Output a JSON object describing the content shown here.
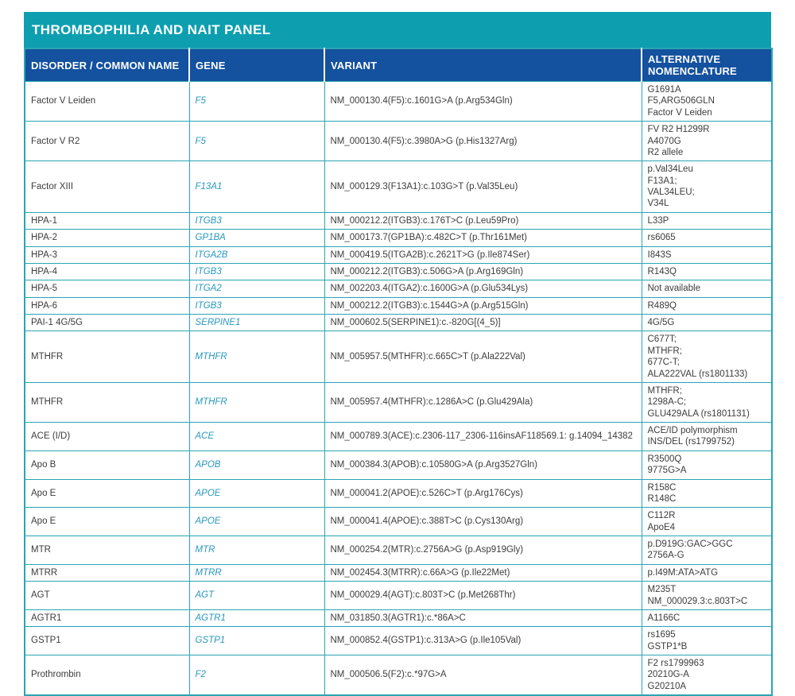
{
  "panel": {
    "title": "THROMBOPHILIA AND NAIT PANEL"
  },
  "colors": {
    "title_bar_teal": "#0d9fb0",
    "header_blue": "#14519e",
    "border_teal": "#2aa5b5",
    "gene_text_teal": "#2898bf",
    "body_text": "#3c3c3c"
  },
  "table": {
    "headers": [
      "DISORDER / COMMON NAME",
      "GENE",
      "VARIANT",
      "ALTERNATIVE NOMENCLATURE"
    ],
    "rows": [
      {
        "disorder": "Factor V Leiden",
        "gene": "F5",
        "variant": "NM_000130.4(F5):c.1601G>A (p.Arg534Gln)",
        "alt": "G1691A\nF5,ARG506GLN\nFactor V Leiden"
      },
      {
        "disorder": "Factor V R2",
        "gene": "F5",
        "variant": "NM_000130.4(F5):c.3980A>G (p.His1327Arg)",
        "alt": "FV R2 H1299R\nA4070G\nR2 allele"
      },
      {
        "disorder": "Factor XIII",
        "gene": "F13A1",
        "variant": "NM_000129.3(F13A1):c.103G>T (p.Val35Leu)",
        "alt": "p.Val34Leu\nF13A1;\nVAL34LEU;\nV34L"
      },
      {
        "disorder": "HPA-1",
        "gene": "ITGB3",
        "variant": "NM_000212.2(ITGB3):c.176T>C (p.Leu59Pro)",
        "alt": "L33P"
      },
      {
        "disorder": "HPA-2",
        "gene": "GP1BA",
        "variant": "NM_000173.7(GP1BA):c.482C>T (p.Thr161Met)",
        "alt": "rs6065"
      },
      {
        "disorder": "HPA-3",
        "gene": "ITGA2B",
        "variant": "NM_000419.5(ITGA2B):c.2621T>G (p.Ile874Ser)",
        "alt": "I843S"
      },
      {
        "disorder": "HPA-4",
        "gene": "ITGB3",
        "variant": "NM_000212.2(ITGB3):c.506G>A (p.Arg169Gln)",
        "alt": "R143Q"
      },
      {
        "disorder": "HPA-5",
        "gene": "ITGA2",
        "variant": "NM_002203.4(ITGA2):c.1600G>A (p.Glu534Lys)",
        "alt": "Not available"
      },
      {
        "disorder": "HPA-6",
        "gene": "ITGB3",
        "variant": "NM_000212.2(ITGB3):c.1544G>A (p.Arg515Gln)",
        "alt": "R489Q"
      },
      {
        "disorder": "PAI-1 4G/5G",
        "gene": "SERPINE1",
        "variant": "NM_000602.5(SERPINE1):c.-820G[(4_5)]",
        "alt": "4G/5G"
      },
      {
        "disorder": "MTHFR",
        "gene": "MTHFR",
        "variant": "NM_005957.5(MTHFR):c.665C>T (p.Ala222Val)",
        "alt": "C677T;\nMTHFR;\n677C-T;\nALA222VAL (rs1801133)"
      },
      {
        "disorder": "MTHFR",
        "gene": "MTHFR",
        "variant": "NM_005957.4(MTHFR):c.1286A>C (p.Glu429Ala)",
        "alt": "MTHFR;\n1298A-C;\nGLU429ALA (rs1801131)"
      },
      {
        "disorder": "ACE (I/D)",
        "gene": "ACE",
        "variant": "NM_000789.3(ACE):c.2306-117_2306-116insAF118569.1: g.14094_14382",
        "alt": "ACE/ID polymorphism\nINS/DEL (rs1799752)"
      },
      {
        "disorder": "Apo B",
        "gene": "APOB",
        "variant": "NM_000384.3(APOB):c.10580G>A (p.Arg3527Gln)",
        "alt": "R3500Q\n9775G>A"
      },
      {
        "disorder": "Apo E",
        "gene": "APOE",
        "variant": "NM_000041.2(APOE):c.526C>T (p.Arg176Cys)",
        "alt": "R158C\nR148C"
      },
      {
        "disorder": "Apo E",
        "gene": "APOE",
        "variant": "NM_000041.4(APOE):c.388T>C (p.Cys130Arg)",
        "alt": "C112R\nApoE4"
      },
      {
        "disorder": "MTR",
        "gene": "MTR",
        "variant": "NM_000254.2(MTR):c.2756A>G (p.Asp919Gly)",
        "alt": "p.D919G:GAC>GGC\n2756A-G"
      },
      {
        "disorder": "MTRR",
        "gene": "MTRR",
        "variant": "NM_002454.3(MTRR):c.66A>G (p.Ile22Met)",
        "alt": "p.I49M:ATA>ATG"
      },
      {
        "disorder": "AGT",
        "gene": "AGT",
        "variant": "NM_000029.4(AGT):c.803T>C (p.Met268Thr)",
        "alt": "M235T\nNM_000029.3:c.803T>C"
      },
      {
        "disorder": "AGTR1",
        "gene": "AGTR1",
        "variant": "NM_031850.3(AGTR1):c.*86A>C",
        "alt": "A1166C"
      },
      {
        "disorder": "GSTP1",
        "gene": "GSTP1",
        "variant": "NM_000852.4(GSTP1):c.313A>G (p.Ile105Val)",
        "alt": "rs1695\nGSTP1*B"
      },
      {
        "disorder": "Prothrombin",
        "gene": "F2",
        "variant": "NM_000506.5(F2):c.*97G>A",
        "alt": "F2 rs1799963\n20210G-A\nG20210A"
      }
    ]
  }
}
